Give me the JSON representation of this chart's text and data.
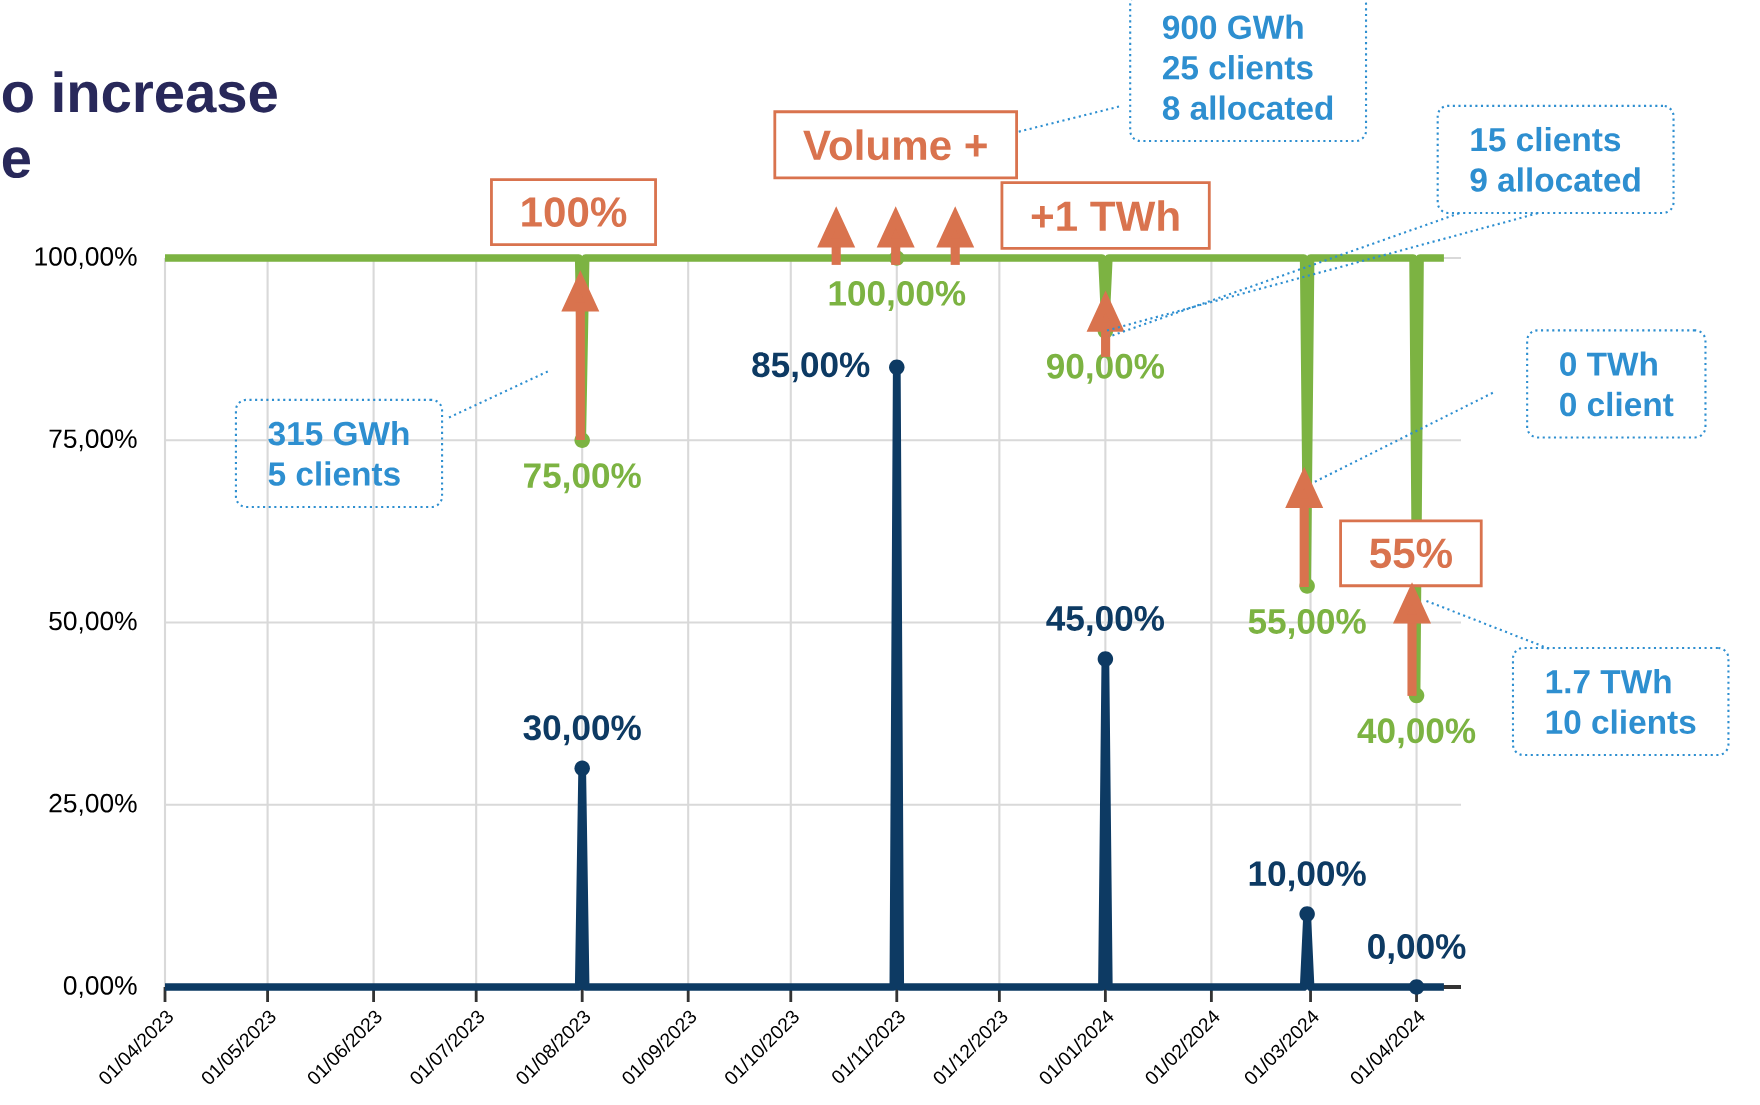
{
  "chart_data": {
    "type": "line",
    "xlim": [
      "2023-04-01",
      "2024-04-14"
    ],
    "xticks": [
      {
        "value": "2023-04-01",
        "label": "01/04/2023"
      },
      {
        "value": "2023-05-01",
        "label": "01/05/2023"
      },
      {
        "value": "2023-06-01",
        "label": "01/06/2023"
      },
      {
        "value": "2023-07-01",
        "label": "01/07/2023"
      },
      {
        "value": "2023-08-01",
        "label": "01/08/2023"
      },
      {
        "value": "2023-09-01",
        "label": "01/09/2023"
      },
      {
        "value": "2023-10-01",
        "label": "01/10/2023"
      },
      {
        "value": "2023-11-01",
        "label": "01/11/2023"
      },
      {
        "value": "2023-12-01",
        "label": "01/12/2023"
      },
      {
        "value": "2024-01-01",
        "label": "01/01/2024"
      },
      {
        "value": "2024-02-01",
        "label": "01/02/2024"
      },
      {
        "value": "2024-03-01",
        "label": "01/03/2024"
      },
      {
        "value": "2024-04-01",
        "label": "01/04/2024"
      }
    ],
    "ylim": [
      0,
      100
    ],
    "yticks": [
      {
        "value": 0,
        "label": "0,00%"
      },
      {
        "value": 25,
        "label": "25,00%"
      },
      {
        "value": 50,
        "label": "50,00%"
      },
      {
        "value": 75,
        "label": "75,00%"
      },
      {
        "value": 100,
        "label": "100,00%"
      }
    ],
    "grid": true,
    "series": [
      {
        "color": "#7cb342",
        "x": [
          "2023-04-01",
          "2023-07-31",
          "2023-08-01",
          "2023-08-02",
          "2023-10-31",
          "2023-11-01",
          "2023-11-02",
          "2023-12-31",
          "2024-01-01",
          "2024-01-02",
          "2024-02-28",
          "2024-02-29",
          "2024-03-01",
          "2024-03-31",
          "2024-04-01",
          "2024-04-02",
          "2024-04-09"
        ],
        "values": [
          100,
          100,
          75,
          100,
          100,
          100,
          100,
          100,
          90,
          100,
          100,
          55,
          100,
          100,
          40,
          100,
          100
        ],
        "value_labels": [
          null,
          null,
          "75,00%",
          null,
          null,
          "100,00%",
          null,
          null,
          "90,00%",
          null,
          null,
          "55,00%",
          null,
          null,
          "40,00%",
          null,
          null
        ]
      },
      {
        "color": "#0d3a63",
        "x": [
          "2023-04-01",
          "2023-07-31",
          "2023-08-01",
          "2023-08-02",
          "2023-10-31",
          "2023-11-01",
          "2023-11-02",
          "2023-12-31",
          "2024-01-01",
          "2024-01-02",
          "2024-02-28",
          "2024-02-29",
          "2024-03-01",
          "2024-04-01",
          "2024-04-09"
        ],
        "values": [
          0,
          0,
          30,
          0,
          0,
          85,
          0,
          0,
          45,
          0,
          0,
          10,
          0,
          0,
          0
        ],
        "value_labels": [
          null,
          null,
          "30,00%",
          null,
          null,
          "85,00%",
          null,
          null,
          "45,00%",
          null,
          null,
          "10,00%",
          null,
          "0,00%",
          null
        ]
      }
    ],
    "annotations": [
      "o increase",
      "e",
      "100%",
      "Volume +",
      "+1 TWh",
      "55%",
      "315 GWh",
      "5 clients",
      "900 GWh",
      "25 clients",
      "8 allocated",
      "15 clients",
      {
        "text": "9 allocated",
        "x": "2024-01-01",
        "y": 90
      },
      "0 TWh",
      "0 client",
      "1.7 TWh",
      "10 clients"
    ]
  }
}
